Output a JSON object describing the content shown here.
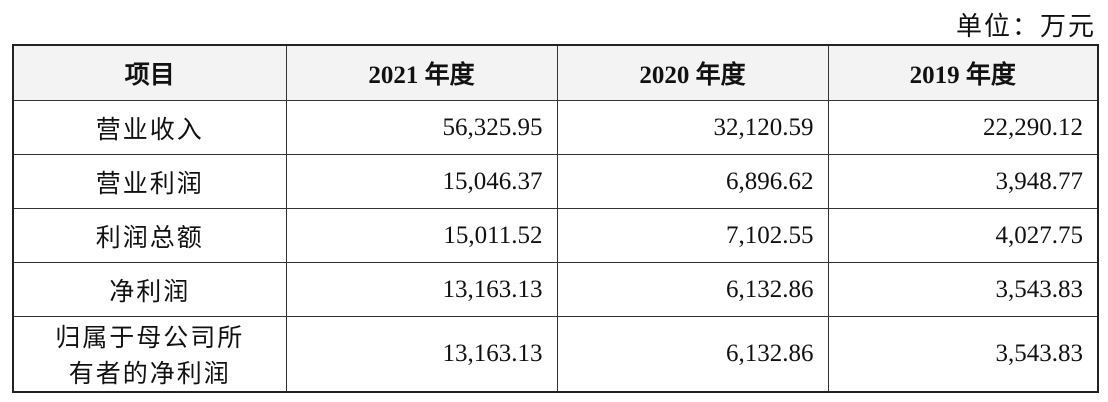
{
  "unit": "单位：万元",
  "table": {
    "header": [
      "项目",
      "2021 年度",
      "2020 年度",
      "2019 年度"
    ],
    "rows": [
      [
        "营业收入",
        "56,325.95",
        "32,120.59",
        "22,290.12"
      ],
      [
        "营业利润",
        "15,046.37",
        "6,896.62",
        "3,948.77"
      ],
      [
        "利润总额",
        "15,011.52",
        "7,102.55",
        "4,027.75"
      ],
      [
        "净利润",
        "13,163.13",
        "6,132.86",
        "3,543.83"
      ],
      [
        "归属于母公司所有者的净利润",
        "13,163.13",
        "6,132.86",
        "3,543.83"
      ]
    ]
  }
}
